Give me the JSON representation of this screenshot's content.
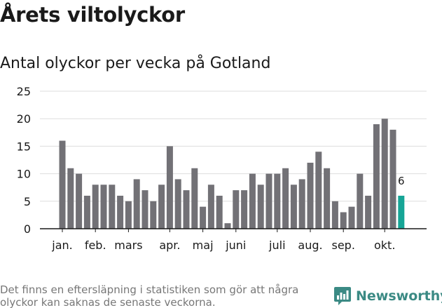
{
  "header": {
    "title": "Årets viltolyckor",
    "subtitle": "Antal olyckor per vecka på Gotland"
  },
  "footer": {
    "note": "Det finns en eftersläpning i statistiken som gör att några olyckor kan saknas de senaste veckorna.",
    "brand": "Newsworthy",
    "brand_icon": "newsworthy-logo-icon"
  },
  "colors": {
    "bar": "#727176",
    "highlight": "#16a596",
    "grid": "#dddddd",
    "axis": "#1a1a1a",
    "brand": "#3b8a84"
  },
  "chart_data": {
    "type": "bar",
    "title": "Antal olyckor per vecka på Gotland",
    "xlabel": "",
    "ylabel": "",
    "ylim": [
      0,
      25
    ],
    "yticks": [
      0,
      5,
      10,
      15,
      20,
      25
    ],
    "grid": true,
    "values": [
      16,
      11,
      10,
      6,
      8,
      8,
      8,
      6,
      5,
      9,
      7,
      5,
      8,
      15,
      9,
      7,
      11,
      4,
      8,
      6,
      1,
      7,
      7,
      10,
      8,
      10,
      10,
      11,
      8,
      9,
      12,
      14,
      11,
      5,
      3,
      4,
      10,
      6,
      19,
      20,
      18,
      6
    ],
    "highlight_index": 41,
    "highlight_label": "6",
    "month_labels": [
      {
        "label": "jan.",
        "bar_index": 0
      },
      {
        "label": "feb.",
        "bar_index": 4
      },
      {
        "label": "mars",
        "bar_index": 8
      },
      {
        "label": "apr.",
        "bar_index": 13
      },
      {
        "label": "maj",
        "bar_index": 17
      },
      {
        "label": "juni",
        "bar_index": 21
      },
      {
        "label": "juli",
        "bar_index": 26
      },
      {
        "label": "aug.",
        "bar_index": 30
      },
      {
        "label": "sep.",
        "bar_index": 34
      },
      {
        "label": "okt.",
        "bar_index": 39
      }
    ]
  }
}
